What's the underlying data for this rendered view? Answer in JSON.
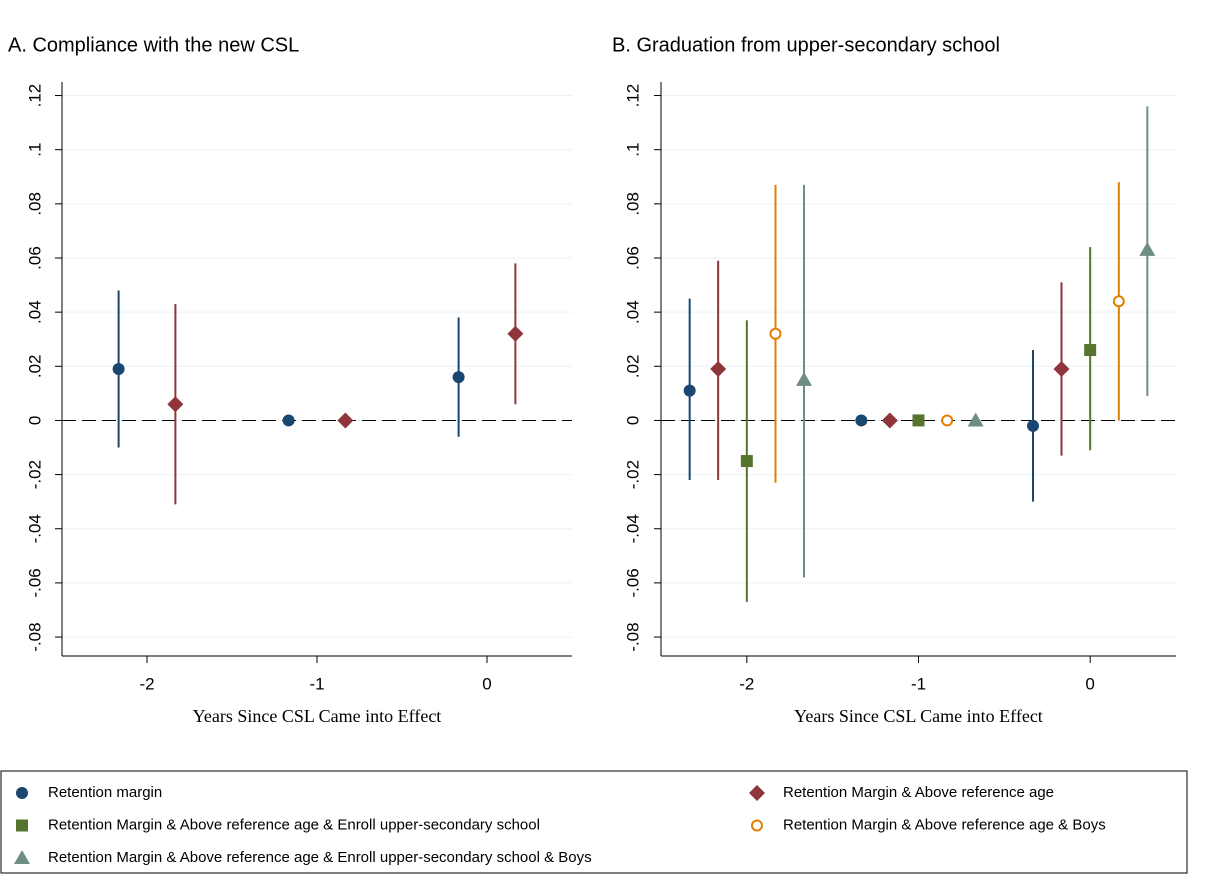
{
  "chart_data": [
    {
      "type": "coefplot",
      "title": "A. Compliance with the new CSL",
      "x_label": "Years Since CSL Came into Effect",
      "xlim": [
        -2.5,
        0.5
      ],
      "xticks": [
        -2,
        -1,
        0
      ],
      "ylim": [
        -0.087,
        0.125
      ],
      "yticks": [
        {
          "value": -0.08,
          "label": "-.08"
        },
        {
          "value": -0.06,
          "label": "-.06"
        },
        {
          "value": -0.04,
          "label": "-.04"
        },
        {
          "value": -0.02,
          "label": "-.02"
        },
        0,
        {
          "value": 0.02,
          "label": ".02"
        },
        {
          "value": 0.04,
          "label": ".04"
        },
        {
          "value": 0.06,
          "label": ".06"
        },
        {
          "value": 0.08,
          "label": ".08"
        },
        {
          "value": 0.1,
          "label": ".1"
        },
        {
          "value": 0.12,
          "label": ".12"
        }
      ],
      "grid": true,
      "refline": 0,
      "series": [
        {
          "color": "#1a476f",
          "marker": "circle",
          "x": [
            -2.167,
            -1.167,
            -0.167
          ],
          "values": [
            0.019,
            0,
            0.016
          ],
          "lower": [
            -0.01,
            null,
            -0.006
          ],
          "upper": [
            0.048,
            null,
            0.038
          ]
        },
        {
          "color": "#90353b",
          "marker": "diamond",
          "x": [
            -1.833,
            -0.833,
            0.167
          ],
          "values": [
            0.006,
            0,
            0.032
          ],
          "lower": [
            -0.031,
            null,
            0.006
          ],
          "upper": [
            0.043,
            null,
            0.058
          ]
        }
      ]
    },
    {
      "type": "coefplot",
      "title": "B. Graduation from upper-secondary school",
      "x_label": "Years Since CSL Came into Effect",
      "xlim": [
        -2.5,
        0.5
      ],
      "xticks": [
        -2,
        -1,
        0
      ],
      "ylim": [
        -0.087,
        0.125
      ],
      "yticks": [
        {
          "value": -0.08,
          "label": "-.08"
        },
        {
          "value": -0.06,
          "label": "-.06"
        },
        {
          "value": -0.04,
          "label": "-.04"
        },
        {
          "value": -0.02,
          "label": "-.02"
        },
        0,
        {
          "value": 0.02,
          "label": ".02"
        },
        {
          "value": 0.04,
          "label": ".04"
        },
        {
          "value": 0.06,
          "label": ".06"
        },
        {
          "value": 0.08,
          "label": ".08"
        },
        {
          "value": 0.1,
          "label": ".1"
        },
        {
          "value": 0.12,
          "label": ".12"
        }
      ],
      "grid": true,
      "refline": 0,
      "legend": "bottom",
      "series": [
        {
          "name": "Retention margin",
          "color": "#1a476f",
          "marker": "circle",
          "x": [
            -2.333,
            -1.333,
            -0.333
          ],
          "values": [
            0.011,
            0,
            -0.002
          ],
          "lower": [
            -0.022,
            null,
            -0.03
          ],
          "upper": [
            0.045,
            null,
            0.026
          ]
        },
        {
          "name": "Retention Margin & Above reference age",
          "color": "#90353b",
          "marker": "diamond",
          "x": [
            -2.167,
            -1.167,
            -0.167
          ],
          "values": [
            0.019,
            0,
            0.019
          ],
          "lower": [
            -0.022,
            null,
            -0.013
          ],
          "upper": [
            0.059,
            null,
            0.051
          ]
        },
        {
          "name": "Retention Margin & Above reference age & Enroll upper-secondary school",
          "color": "#55752f",
          "marker": "square",
          "x": [
            -2,
            -1,
            0
          ],
          "values": [
            -0.015,
            0,
            0.026
          ],
          "lower": [
            -0.067,
            null,
            -0.011
          ],
          "upper": [
            0.037,
            null,
            0.064
          ]
        },
        {
          "name": "Retention Margin & Above reference age & Boys",
          "color": "#e37e00",
          "marker": "hollow-circle",
          "x": [
            -1.833,
            -0.833,
            0.167
          ],
          "values": [
            0.032,
            0,
            0.044
          ],
          "lower": [
            -0.023,
            null,
            0
          ],
          "upper": [
            0.087,
            null,
            0.088
          ]
        },
        {
          "name": "Retention Margin & Above reference age & Enroll upper-secondary school & Boys",
          "color": "#6e8e84",
          "marker": "triangle",
          "x": [
            -1.667,
            -0.667,
            0.333
          ],
          "values": [
            0.015,
            0,
            0.063
          ],
          "lower": [
            -0.058,
            null,
            0.009
          ],
          "upper": [
            0.087,
            null,
            0.116
          ]
        }
      ]
    }
  ]
}
